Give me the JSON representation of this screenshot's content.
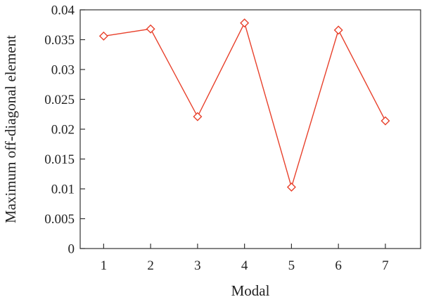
{
  "chart_data": {
    "type": "line",
    "title": "",
    "xlabel": "Modal",
    "ylabel": "Maximum off-diagonal element",
    "x": [
      1,
      2,
      3,
      4,
      5,
      6,
      7
    ],
    "x_tick_labels": [
      "1",
      "2",
      "3",
      "4",
      "5",
      "6",
      "7"
    ],
    "xlim": [
      0.5,
      7.75
    ],
    "ylim": [
      0,
      0.04
    ],
    "y_ticks": [
      0,
      0.005,
      0.01,
      0.015,
      0.02,
      0.025,
      0.03,
      0.035,
      0.04
    ],
    "y_tick_labels": [
      "0",
      "0.005",
      "0.01",
      "0.015",
      "0.02",
      "0.025",
      "0.03",
      "0.035",
      "0.04"
    ],
    "grid": false,
    "marker": "diamond-open",
    "series": [
      {
        "name": "",
        "color": "#e8412c",
        "values": [
          0.0356,
          0.0368,
          0.0221,
          0.0378,
          0.0103,
          0.0366,
          0.0214
        ]
      }
    ]
  }
}
